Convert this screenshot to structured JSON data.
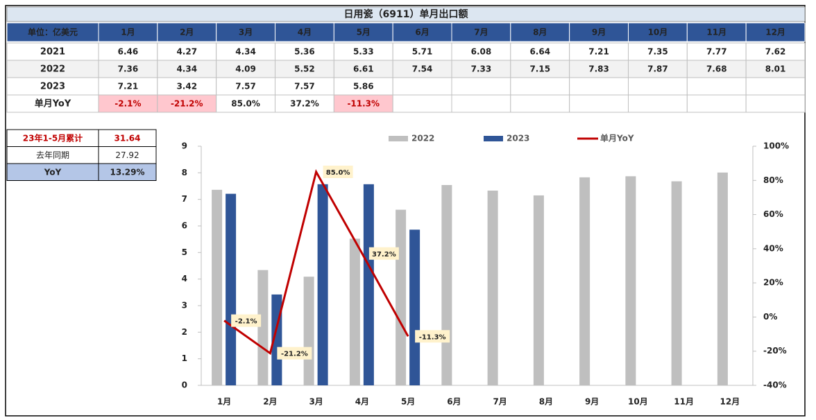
{
  "table": {
    "title": "日用瓷（6911）单月出口额",
    "header": [
      "单位：亿美元",
      "1月",
      "2月",
      "3月",
      "4月",
      "5月",
      "6月",
      "7月",
      "8月",
      "9月",
      "10月",
      "11月",
      "12月"
    ],
    "rows": [
      [
        "2021",
        "6.46",
        "4.27",
        "4.34",
        "5.36",
        "5.33",
        "5.71",
        "6.08",
        "6.64",
        "7.21",
        "7.35",
        "7.77",
        "7.62"
      ],
      [
        "2022",
        "7.36",
        "4.34",
        "4.09",
        "5.52",
        "6.61",
        "7.54",
        "7.33",
        "7.15",
        "7.83",
        "7.87",
        "7.68",
        "8.01"
      ],
      [
        "2023",
        "7.21",
        "3.42",
        "7.57",
        "7.57",
        "5.86"
      ],
      [
        "单月YoY",
        "-2.1%",
        "-21.2%",
        "85.0%",
        "37.2%",
        "-11.3%"
      ]
    ]
  },
  "summary": {
    "rows": [
      [
        "23年1-5月累计",
        "31.64"
      ],
      [
        "去年同期",
        "27.92"
      ],
      [
        "YoY",
        "13.29%"
      ]
    ]
  },
  "chart_data": {
    "type": "bar",
    "categories": [
      "1月",
      "2月",
      "3月",
      "4月",
      "5月",
      "6月",
      "7月",
      "8月",
      "9月",
      "10月",
      "11月",
      "12月"
    ],
    "series": [
      {
        "name": "2022",
        "color": "#bfbfbf",
        "values": [
          7.36,
          4.34,
          4.09,
          5.52,
          6.61,
          7.54,
          7.33,
          7.15,
          7.83,
          7.87,
          7.68,
          8.01
        ]
      },
      {
        "name": "2023",
        "color": "#2f5597",
        "values": [
          7.21,
          3.42,
          7.57,
          7.57,
          5.86,
          null,
          null,
          null,
          null,
          null,
          null,
          null
        ]
      },
      {
        "name": "单月YoY",
        "type": "line",
        "axis": "y2",
        "color": "#c00000",
        "values": [
          -2.1,
          -21.2,
          85.0,
          37.2,
          -11.3,
          null,
          null,
          null,
          null,
          null,
          null,
          null
        ],
        "value_labels": [
          "-2.1%",
          "-21.2%",
          "85.0%",
          "37.2%",
          "-11.3%",
          null,
          null,
          null,
          null,
          null,
          null,
          null
        ]
      }
    ],
    "ylim": [
      0,
      9
    ],
    "yticks": [
      0,
      1,
      2,
      3,
      4,
      5,
      6,
      7,
      8,
      9
    ],
    "y2lim": [
      -40,
      100
    ],
    "y2ticks": [
      {
        "value": -40,
        "label": "-40%"
      },
      {
        "value": -20,
        "label": "-20%"
      },
      {
        "value": 0,
        "label": "0%"
      },
      {
        "value": 20,
        "label": "20%"
      },
      {
        "value": 40,
        "label": "40%"
      },
      {
        "value": 60,
        "label": "60%"
      },
      {
        "value": 80,
        "label": "80%"
      },
      {
        "value": 100,
        "label": "100%"
      }
    ],
    "legend": "top"
  }
}
